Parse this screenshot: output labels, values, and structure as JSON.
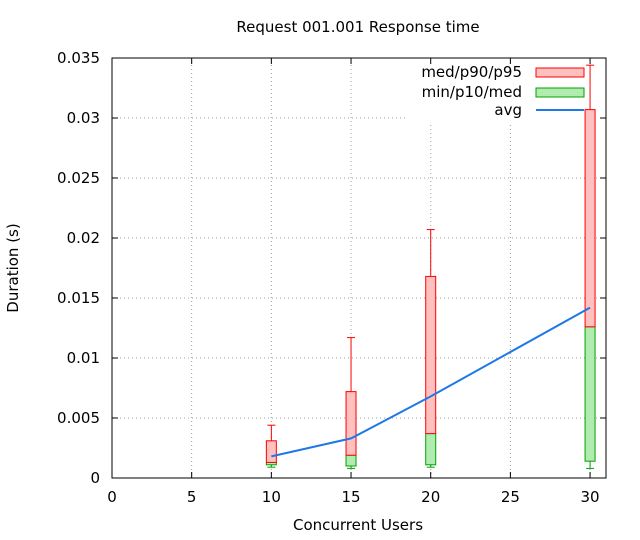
{
  "chart_data": {
    "type": "candlestick",
    "title": "Request 001.001 Response time",
    "xlabel": "Concurrent Users",
    "ylabel": "Duration (s)",
    "xlim": [
      0,
      31
    ],
    "ylim": [
      0,
      0.035
    ],
    "xticks": [
      0,
      5,
      10,
      15,
      20,
      25,
      30
    ],
    "yticks": [
      "0",
      "0.005",
      "0.01",
      "0.015",
      "0.02",
      "0.025",
      "0.03",
      "0.035"
    ],
    "grid": true,
    "legend_position": "top-right",
    "series": [
      {
        "name": "med/p90/p95",
        "color": "#ff0000",
        "fill": "#ffc0c0",
        "points": [
          {
            "x": 10,
            "med": 0.0013,
            "p90": 0.0031,
            "p95": 0.0044
          },
          {
            "x": 15,
            "med": 0.0019,
            "p90": 0.0072,
            "p95": 0.0117
          },
          {
            "x": 20,
            "med": 0.0037,
            "p90": 0.0168,
            "p95": 0.0207
          },
          {
            "x": 30,
            "med": 0.0126,
            "p90": 0.0307,
            "p95": 0.0344
          }
        ]
      },
      {
        "name": "min/p10/med",
        "color": "#00a000",
        "fill": "#b0ecb0",
        "points": [
          {
            "x": 10,
            "min": 0.0009,
            "p10": 0.0011,
            "med": 0.0013
          },
          {
            "x": 15,
            "min": 0.0008,
            "p10": 0.001,
            "med": 0.0019
          },
          {
            "x": 20,
            "min": 0.0009,
            "p10": 0.0011,
            "med": 0.0037
          },
          {
            "x": 30,
            "min": 0.0008,
            "p10": 0.0014,
            "med": 0.0126
          }
        ]
      },
      {
        "name": "avg",
        "color": "#1e78e6",
        "points": [
          {
            "x": 10,
            "y": 0.0018
          },
          {
            "x": 15,
            "y": 0.0033
          },
          {
            "x": 20,
            "y": 0.0068
          },
          {
            "x": 30,
            "y": 0.0142
          }
        ]
      }
    ]
  }
}
